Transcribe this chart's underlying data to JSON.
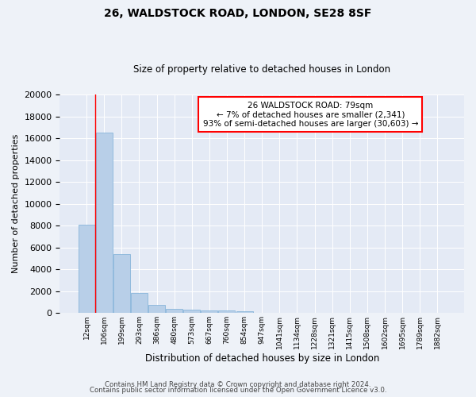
{
  "title1": "26, WALDSTOCK ROAD, LONDON, SE28 8SF",
  "title2": "Size of property relative to detached houses in London",
  "xlabel": "Distribution of detached houses by size in London",
  "ylabel": "Number of detached properties",
  "categories": [
    "12sqm",
    "106sqm",
    "199sqm",
    "293sqm",
    "386sqm",
    "480sqm",
    "573sqm",
    "667sqm",
    "760sqm",
    "854sqm",
    "947sqm",
    "1041sqm",
    "1134sqm",
    "1228sqm",
    "1321sqm",
    "1415sqm",
    "1508sqm",
    "1602sqm",
    "1695sqm",
    "1789sqm",
    "1882sqm"
  ],
  "values": [
    8100,
    16500,
    5400,
    1850,
    750,
    350,
    280,
    230,
    200,
    170,
    0,
    0,
    0,
    0,
    0,
    0,
    0,
    0,
    0,
    0,
    0
  ],
  "bar_color": "#b8cfe8",
  "bar_edge_color": "#7aaed6",
  "red_line_x": 0.5,
  "annotation_title": "26 WALDSTOCK ROAD: 79sqm",
  "annotation_line1": "← 7% of detached houses are smaller (2,341)",
  "annotation_line2": "93% of semi-detached houses are larger (30,603) →",
  "ylim": [
    0,
    20000
  ],
  "yticks": [
    0,
    2000,
    4000,
    6000,
    8000,
    10000,
    12000,
    14000,
    16000,
    18000,
    20000
  ],
  "footer1": "Contains HM Land Registry data © Crown copyright and database right 2024.",
  "footer2": "Contains public sector information licensed under the Open Government Licence v3.0.",
  "bg_color": "#eef2f8",
  "plot_bg_color": "#e4eaf5"
}
